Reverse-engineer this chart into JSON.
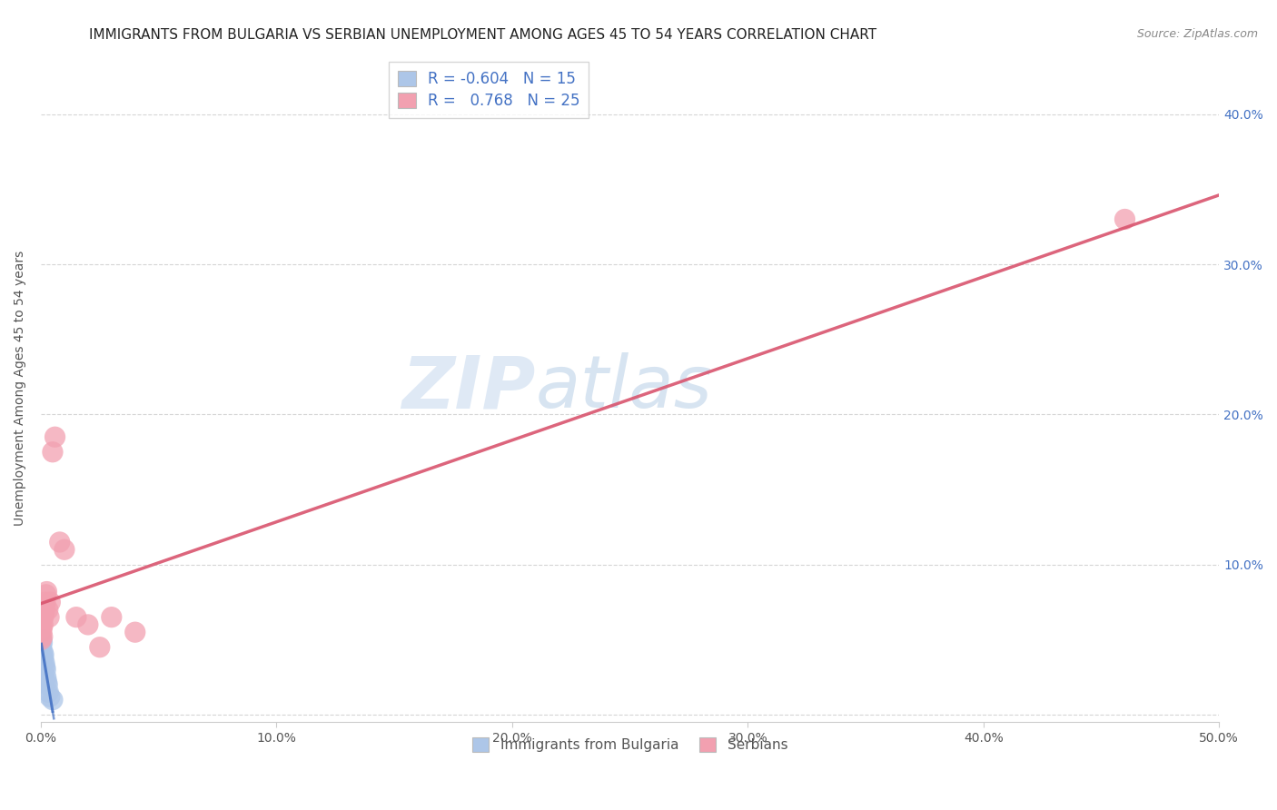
{
  "title": "IMMIGRANTS FROM BULGARIA VS SERBIAN UNEMPLOYMENT AMONG AGES 45 TO 54 YEARS CORRELATION CHART",
  "source": "Source: ZipAtlas.com",
  "ylabel": "Unemployment Among Ages 45 to 54 years",
  "xlim": [
    0.0,
    0.5
  ],
  "ylim": [
    -0.005,
    0.44
  ],
  "xticks": [
    0.0,
    0.1,
    0.2,
    0.3,
    0.4,
    0.5
  ],
  "yticks": [
    0.0,
    0.1,
    0.2,
    0.3,
    0.4
  ],
  "xtick_labels": [
    "0.0%",
    "10.0%",
    "20.0%",
    "30.0%",
    "40.0%",
    "50.0%"
  ],
  "ytick_labels": [
    "",
    "10.0%",
    "20.0%",
    "30.0%",
    "40.0%"
  ],
  "blue_color": "#adc6e8",
  "pink_color": "#f2a0b0",
  "blue_line_color": "#4472c4",
  "pink_line_color": "#d9546e",
  "legend_r_blue": "-0.604",
  "legend_n_blue": "15",
  "legend_r_pink": "0.768",
  "legend_n_pink": "25",
  "legend_label_blue": "Immigrants from Bulgaria",
  "legend_label_pink": "Serbians",
  "watermark_zip": "ZIP",
  "watermark_atlas": "atlas",
  "blue_scatter_x": [
    0.0002,
    0.0004,
    0.0006,
    0.0008,
    0.001,
    0.0012,
    0.0015,
    0.0018,
    0.002,
    0.0022,
    0.0025,
    0.0028,
    0.0032,
    0.0038,
    0.005
  ],
  "blue_scatter_y": [
    0.045,
    0.05,
    0.048,
    0.042,
    0.038,
    0.04,
    0.035,
    0.032,
    0.03,
    0.025,
    0.022,
    0.02,
    0.015,
    0.012,
    0.01
  ],
  "pink_scatter_x": [
    0.0002,
    0.0004,
    0.0005,
    0.0007,
    0.0009,
    0.0011,
    0.0013,
    0.0015,
    0.0017,
    0.0019,
    0.0022,
    0.0025,
    0.003,
    0.0035,
    0.004,
    0.005,
    0.006,
    0.008,
    0.01,
    0.015,
    0.02,
    0.025,
    0.03,
    0.04,
    0.46
  ],
  "pink_scatter_y": [
    0.05,
    0.055,
    0.058,
    0.052,
    0.06,
    0.065,
    0.07,
    0.068,
    0.072,
    0.075,
    0.08,
    0.082,
    0.07,
    0.065,
    0.075,
    0.175,
    0.185,
    0.115,
    0.11,
    0.065,
    0.06,
    0.045,
    0.065,
    0.055,
    0.33
  ],
  "grid_color": "#cccccc",
  "title_fontsize": 11,
  "axis_label_fontsize": 10,
  "tick_fontsize": 10,
  "background_color": "#ffffff"
}
